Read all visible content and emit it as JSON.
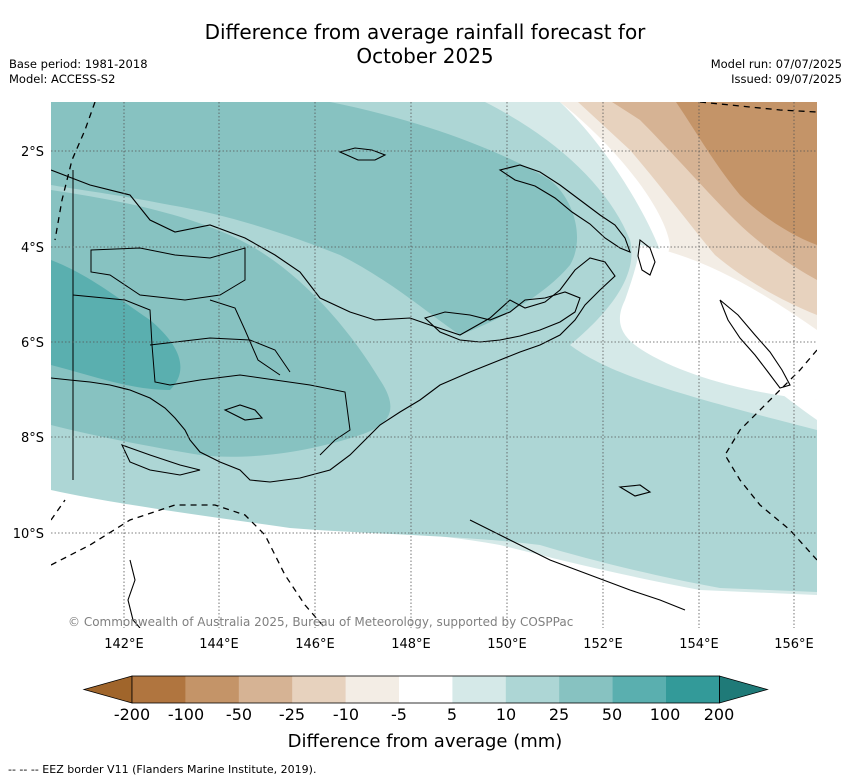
{
  "title": "Difference from average rainfall forecast for October 2025",
  "title_lines": [
    "Difference from average rainfall forecast for",
    "October 2025"
  ],
  "meta_left": {
    "base_period": "Base period: 1981-2018",
    "model": "Model: ACCESS-S2"
  },
  "meta_right": {
    "model_run": "Model run: 07/07/2025",
    "issued": "Issued: 09/07/2025"
  },
  "lat_labels": [
    "2°S",
    "4°S",
    "6°S",
    "8°S",
    "10°S"
  ],
  "lon_labels": [
    "142°E",
    "144°E",
    "146°E",
    "148°E",
    "150°E",
    "152°E",
    "154°E",
    "156°E"
  ],
  "copyright": "© Commonwealth of Australia 2025, Bureau of Meteorology, supported by COSPPac",
  "colorbar": {
    "ticks": [
      "-200",
      "-100",
      "-50",
      "-25",
      "-10",
      "-5",
      "5",
      "10",
      "25",
      "50",
      "100",
      "200"
    ],
    "colors": [
      "#a0652b",
      "#b0753f",
      "#c49468",
      "#d6b394",
      "#e7d2be",
      "#f3ede5",
      "#ffffff",
      "#d5e9e8",
      "#add6d5",
      "#87c2c1",
      "#5aafaf",
      "#339a99",
      "#1f7a78"
    ],
    "label": "Difference from average (mm)"
  },
  "eez_note": "-- --  -- EEZ border V11 (Flanders Marine Institute, 2019)."
}
